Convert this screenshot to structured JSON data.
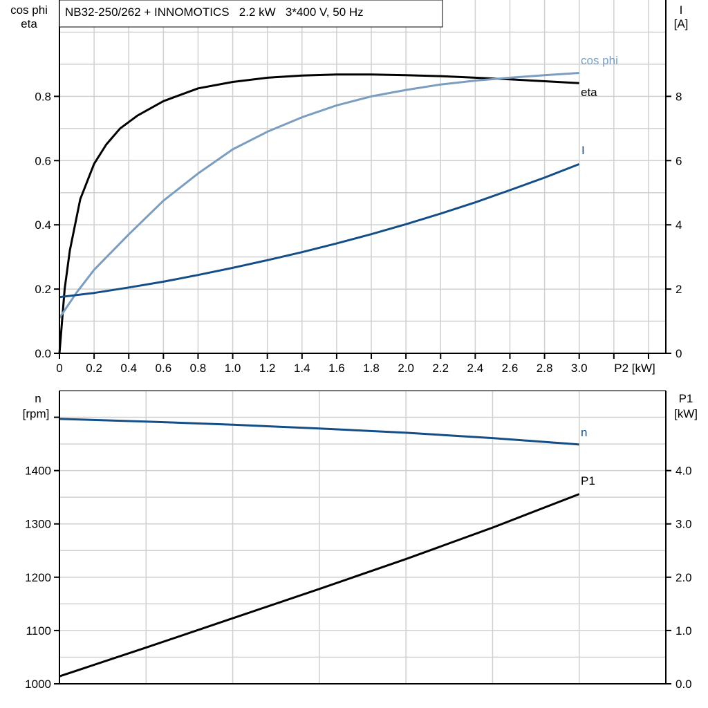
{
  "colors": {
    "eta": "#000000",
    "cos_phi": "#7b9dbf",
    "I": "#134e87",
    "n": "#134e87",
    "P1": "#000000",
    "grid": "#d0d0d0"
  },
  "chart_data": [
    {
      "type": "line",
      "title": "NB32-250/262 + INNOMOTICS   2.2 kW   3*400 V, 50 Hz",
      "xlabel": "P2 [kW]",
      "ylabel_left": [
        "cos phi",
        "eta"
      ],
      "ylabel_right": [
        "I",
        "[A]"
      ],
      "xlim": [
        0,
        3.5
      ],
      "ylim_left": [
        0,
        1.1
      ],
      "ylim_right": [
        0,
        11
      ],
      "x_ticks": [
        "0",
        "0.2",
        "0.4",
        "0.6",
        "0.8",
        "1.0",
        "1.2",
        "1.4",
        "1.6",
        "1.8",
        "2.0",
        "2.2",
        "2.4",
        "2.6",
        "2.8",
        "3.0"
      ],
      "y_left_ticks": [
        "0.0",
        "0.2",
        "0.4",
        "0.6",
        "0.8"
      ],
      "y_right_ticks": [
        "0",
        "2",
        "4",
        "6",
        "8"
      ],
      "grid": true,
      "series": [
        {
          "name": "eta",
          "axis": "left",
          "x": [
            0,
            0.03,
            0.06,
            0.12,
            0.2,
            0.27,
            0.35,
            0.45,
            0.6,
            0.8,
            1.0,
            1.2,
            1.4,
            1.6,
            1.8,
            2.0,
            2.2,
            2.4,
            2.6,
            2.8,
            3.0
          ],
          "y": [
            0,
            0.2,
            0.32,
            0.48,
            0.59,
            0.65,
            0.7,
            0.74,
            0.785,
            0.825,
            0.845,
            0.858,
            0.865,
            0.868,
            0.868,
            0.866,
            0.863,
            0.858,
            0.853,
            0.847,
            0.841
          ]
        },
        {
          "name": "cos phi",
          "axis": "left",
          "x": [
            0,
            0.1,
            0.2,
            0.4,
            0.6,
            0.8,
            1.0,
            1.2,
            1.4,
            1.6,
            1.8,
            2.0,
            2.2,
            2.4,
            2.6,
            2.8,
            3.0
          ],
          "y": [
            0.11,
            0.19,
            0.26,
            0.37,
            0.475,
            0.56,
            0.635,
            0.69,
            0.735,
            0.772,
            0.8,
            0.82,
            0.837,
            0.849,
            0.858,
            0.866,
            0.873
          ]
        },
        {
          "name": "I",
          "axis": "right",
          "x": [
            0,
            0.2,
            0.4,
            0.6,
            0.8,
            1.0,
            1.2,
            1.4,
            1.6,
            1.8,
            2.0,
            2.2,
            2.4,
            2.6,
            2.8,
            3.0
          ],
          "y": [
            1.75,
            1.88,
            2.05,
            2.23,
            2.44,
            2.66,
            2.9,
            3.15,
            3.42,
            3.71,
            4.02,
            4.35,
            4.7,
            5.08,
            5.47,
            5.89
          ]
        }
      ]
    },
    {
      "type": "line",
      "xlim": [
        0,
        3.5
      ],
      "ylabel_left": [
        "n",
        "[rpm]"
      ],
      "ylabel_right": [
        "P1",
        "[kW]"
      ],
      "ylim_left": [
        1000,
        1550
      ],
      "ylim_right": [
        0,
        5.5
      ],
      "y_left_ticks": [
        "1000",
        "1100",
        "1200",
        "1300",
        "1400"
      ],
      "y_right_ticks": [
        "0.0",
        "1.0",
        "2.0",
        "3.0",
        "4.0"
      ],
      "grid": true,
      "series": [
        {
          "name": "n",
          "axis": "left",
          "x": [
            0,
            0.5,
            1.0,
            1.5,
            2.0,
            2.5,
            3.0
          ],
          "y": [
            1497,
            1492,
            1486,
            1479,
            1471,
            1461,
            1449
          ]
        },
        {
          "name": "P1",
          "axis": "right",
          "x": [
            0,
            0.5,
            1.0,
            1.5,
            2.0,
            2.5,
            3.0
          ],
          "y": [
            0.14,
            0.68,
            1.23,
            1.78,
            2.34,
            2.93,
            3.56
          ]
        }
      ]
    }
  ]
}
